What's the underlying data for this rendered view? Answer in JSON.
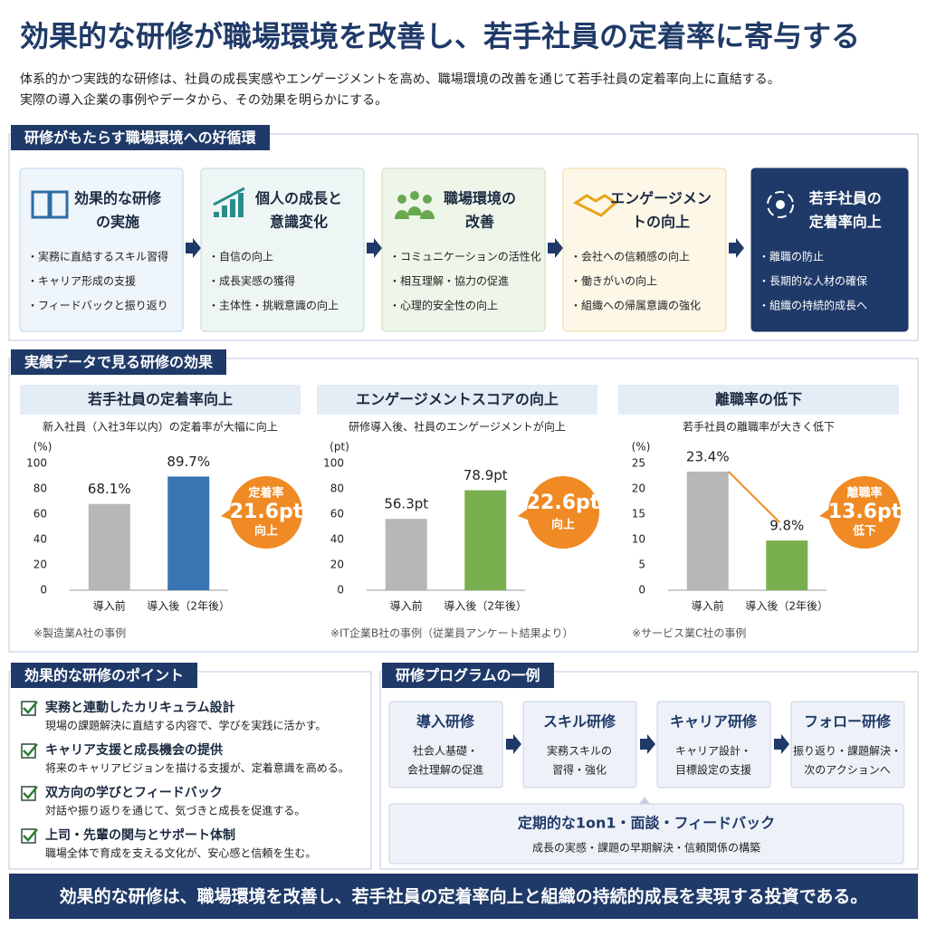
{
  "header": {
    "title": "効果的な研修が職場環境を改善し、若手社員の定着率に寄与する",
    "lead": [
      "体系的かつ実践的な研修は、社員の成長実感やエンゲージメントを高め、職場環境の改善を通じて若手社員の定着率向上に直結する。",
      "実際の導入企業の事例やデータから、その効果を明らかにする。"
    ]
  },
  "cycle": {
    "title": "研修がもたらす職場環境への好循環",
    "steps": [
      {
        "title": [
          "効果的な研修",
          "の実施"
        ],
        "items": [
          "・実務に直結するスキル習得",
          "・キャリア形成の支援",
          "・フィードバックと振り返り"
        ]
      },
      {
        "title": [
          "個人の成長と",
          "意識変化"
        ],
        "items": [
          "・自信の向上",
          "・成長実感の獲得",
          "・主体性・挑戦意識の向上"
        ]
      },
      {
        "title": [
          "職場環境の",
          "改善"
        ],
        "items": [
          "・コミュニケーションの活性化",
          "・相互理解・協力の促進",
          "・心理的安全性の向上"
        ]
      },
      {
        "title": [
          "エンゲージメン",
          "トの向上"
        ],
        "items": [
          "・会社への信頼感の向上",
          "・働きがいの向上",
          "・組織への帰属意識の強化"
        ]
      },
      {
        "title": [
          "若手社員の",
          "定着率向上"
        ],
        "items": [
          "・離職の防止",
          "・長期的な人材の確保",
          "・組織の持続的成長へ"
        ]
      }
    ]
  },
  "results": {
    "title": "実績データで見る研修の効果"
  },
  "chart_data": [
    {
      "type": "bar",
      "title": "若手社員の定着率向上",
      "subtitle": "新入社員（入社3年以内）の定着率が大幅に向上",
      "y_label": "(%)",
      "categories": [
        "導入前",
        "導入後（2年後）"
      ],
      "values": [
        68.1,
        89.7
      ],
      "value_labels": [
        "68.1%",
        "89.7%"
      ],
      "colors": [
        "#b7b7b7",
        "#3b74b3"
      ],
      "ylim": [
        0,
        100
      ],
      "yticks": [
        0,
        20,
        40,
        60,
        80,
        100
      ],
      "grid": false,
      "annotations": [
        "定着率",
        "21.6pt",
        "向上"
      ],
      "note": "※製造業A社の事例"
    },
    {
      "type": "bar",
      "title": "エンゲージメントスコアの向上",
      "subtitle": "研修導入後、社員のエンゲージメントが向上",
      "y_label": "(pt)",
      "categories": [
        "導入前",
        "導入後（2年後）"
      ],
      "values": [
        56.3,
        78.9
      ],
      "value_labels": [
        "56.3pt",
        "78.9pt"
      ],
      "colors": [
        "#b7b7b7",
        "#7aaf4f"
      ],
      "ylim": [
        0,
        100
      ],
      "yticks": [
        0,
        20,
        40,
        60,
        80,
        100
      ],
      "grid": false,
      "annotations": [
        "22.6pt",
        "向上"
      ],
      "note": "※IT企業B社の事例（従業員アンケート結果より）"
    },
    {
      "type": "bar",
      "title": "離職率の低下",
      "subtitle": "若手社員の離職率が大きく低下",
      "y_label": "(%)",
      "categories": [
        "導入前",
        "導入後（2年後）"
      ],
      "values": [
        23.4,
        9.8
      ],
      "value_labels": [
        "23.4%",
        "9.8%"
      ],
      "colors": [
        "#b7b7b7",
        "#7aaf4f"
      ],
      "ylim": [
        0,
        25
      ],
      "yticks": [
        0,
        5,
        10,
        15,
        20,
        25
      ],
      "grid": false,
      "annotations": [
        "離職率",
        "13.6pt",
        "低下"
      ],
      "note": "※サービス業C社の事例"
    }
  ],
  "points": {
    "title": "効果的な研修のポイント",
    "items": [
      {
        "title": "実務と連動したカリキュラム設計",
        "text": "現場の課題解決に直結する内容で、学びを実践に活かす。"
      },
      {
        "title": "キャリア支援と成長機会の提供",
        "text": "将来のキャリアビジョンを描ける支援が、定着意識を高める。"
      },
      {
        "title": "双方向の学びとフィードバック",
        "text": "対話や振り返りを通じて、気づきと成長を促進する。"
      },
      {
        "title": "上司・先輩の関与とサポート体制",
        "text": "職場全体で育成を支える文化が、安心感と信頼を生む。"
      }
    ]
  },
  "program": {
    "title": "研修プログラムの一例",
    "steps": [
      {
        "title": "導入研修",
        "lines": [
          "社会人基礎・",
          "会社理解の促進"
        ]
      },
      {
        "title": "スキル研修",
        "lines": [
          "実務スキルの",
          "習得・強化"
        ]
      },
      {
        "title": "キャリア研修",
        "lines": [
          "キャリア設計・",
          "目標設定の支援"
        ]
      },
      {
        "title": "フォロー研修",
        "lines": [
          "振り返り・課題解決・",
          "次のアクションへ"
        ]
      }
    ],
    "followup": {
      "title": "定期的な1on1・面談・フィードバック",
      "text": "成長の実感・課題の早期解決・信頼関係の構築"
    }
  },
  "footer": "効果的な研修は、職場環境を改善し、若手社員の定着率向上と組織の持続的成長を実現する投資である。"
}
